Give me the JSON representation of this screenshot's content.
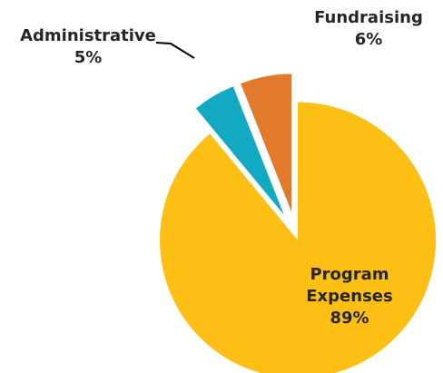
{
  "chart_data": {
    "type": "pie",
    "title": "",
    "slices": [
      {
        "label": "Program Expenses",
        "value": 89,
        "color": "#fdbf14"
      },
      {
        "label": "Administrative",
        "value": 5,
        "color": "#12a9c3"
      },
      {
        "label": "Fundraising",
        "value": 6,
        "color": "#e27a2b"
      }
    ],
    "data_labels": [
      "89%",
      "5%",
      "6%"
    ],
    "exploded": true,
    "legend": "none"
  }
}
